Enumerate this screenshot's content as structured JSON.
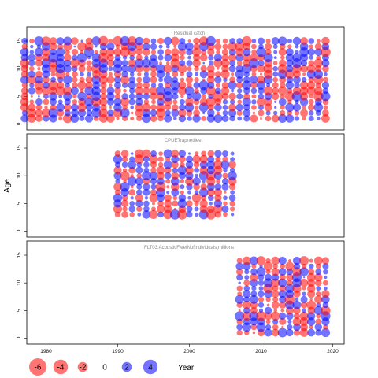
{
  "chart_data": {
    "type": "scatter",
    "style": "residual-bubble",
    "ylabel": "Age",
    "xlabel": "Year",
    "colors": {
      "positive": "#0000ff",
      "negative": "#ff0000"
    },
    "x_ticks": [
      1980,
      1990,
      2000,
      2010,
      2020
    ],
    "y_ticks": [
      0,
      5,
      10,
      15
    ],
    "xlim": [
      1976,
      2022
    ],
    "ylim": [
      -0.5,
      16
    ],
    "legend": {
      "placement": "bottom-left",
      "values": [
        -6,
        -4,
        -2,
        0,
        2,
        4
      ],
      "labels": [
        "-6",
        "-4",
        "-2",
        "0",
        "2",
        "4"
      ]
    },
    "panels": [
      {
        "title": "Residual catch",
        "years": [
          1977,
          2019
        ],
        "ages": [
          1,
          15
        ]
      },
      {
        "title": "CPUETrapnetfleet",
        "years": [
          1990,
          2006
        ],
        "ages": [
          3,
          14
        ]
      },
      {
        "title": "FLT03:AcousticFleetNofIndividuals,millions",
        "years": [
          2007,
          2019
        ],
        "ages": [
          1,
          14
        ]
      }
    ]
  }
}
